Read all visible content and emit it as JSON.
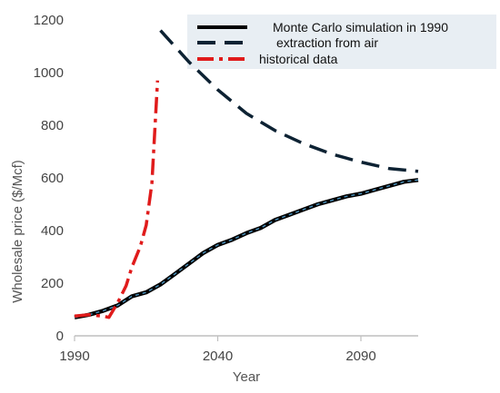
{
  "chart_data": {
    "type": "line",
    "xlabel": "Year",
    "ylabel": "Wholesale price ($/Mcf)",
    "xlim": [
      1990,
      2110
    ],
    "ylim": [
      0,
      1200
    ],
    "x_ticks": [
      1990,
      2040,
      2090
    ],
    "y_ticks": [
      0,
      200,
      400,
      600,
      800,
      1000,
      1200
    ],
    "grid": false,
    "legend_position": "top-right",
    "series": [
      {
        "name": "Monte Carlo simulation in 1990",
        "style": "solid",
        "color": "#000000",
        "overlay_color": "#4a8fb8",
        "x": [
          1990,
          1995,
          2000,
          2005,
          2010,
          2015,
          2020,
          2025,
          2030,
          2035,
          2040,
          2045,
          2050,
          2055,
          2060,
          2065,
          2070,
          2075,
          2080,
          2085,
          2090,
          2095,
          2100,
          2105,
          2110
        ],
        "y": [
          70,
          80,
          95,
          115,
          150,
          165,
          195,
          235,
          275,
          315,
          345,
          365,
          390,
          410,
          440,
          460,
          480,
          500,
          515,
          530,
          540,
          555,
          570,
          585,
          592
        ]
      },
      {
        "name": "extraction from air",
        "style": "dashed",
        "color": "#0d2233",
        "x": [
          2020,
          2030,
          2040,
          2050,
          2060,
          2070,
          2080,
          2090,
          2100,
          2110
        ],
        "y": [
          1160,
          1040,
          935,
          845,
          780,
          730,
          690,
          660,
          635,
          625
        ]
      },
      {
        "name": "historical data",
        "style": "dashdot",
        "color": "#e01b1b",
        "x": [
          1990,
          1995,
          2000,
          2002,
          2005,
          2008,
          2010,
          2013,
          2015,
          2017,
          2019
        ],
        "y": [
          75,
          80,
          75,
          70,
          125,
          190,
          260,
          340,
          420,
          580,
          970
        ]
      }
    ],
    "colors": {
      "axis": "#bfbfbf",
      "legend_bg": "#e8eef3"
    }
  }
}
